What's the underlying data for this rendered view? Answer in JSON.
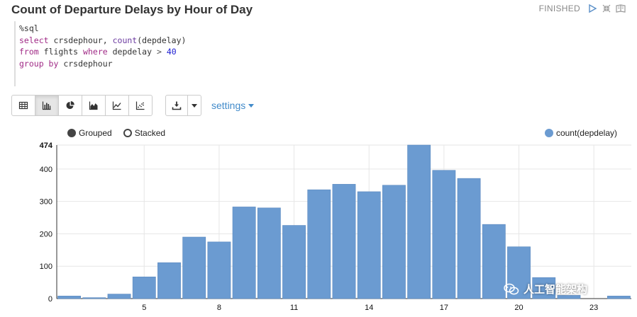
{
  "paragraph": {
    "title": "Count of Departure Delays by Hour of Day",
    "status": "FINISHED"
  },
  "icons": {
    "run": "play-icon",
    "collapse": "collapse-icon",
    "book": "book-icon"
  },
  "code": {
    "interpreter": "%sql",
    "line1_kw": "select",
    "line1_rest": "crsdephour,",
    "line1_fn": "count",
    "line1_arg": "(depdelay)",
    "line2_kw1": "from",
    "line2_tbl": "flights",
    "line2_kw2": "where",
    "line2_col": "depdelay",
    "line2_op": ">",
    "line2_num": "40",
    "line3_kw": "group by",
    "line3_col": "crsdephour"
  },
  "toolbar": {
    "views": [
      "table-icon",
      "bar-chart-icon",
      "pie-chart-icon",
      "area-chart-icon",
      "line-chart-icon",
      "scatter-chart-icon"
    ],
    "active_view": "bar-chart-icon",
    "settings_label": "settings"
  },
  "legend": {
    "grouped": "Grouped",
    "stacked": "Stacked",
    "series": "count(depdelay)",
    "series_color": "#6b9bd1"
  },
  "watermark": "人工智能架构",
  "chart_data": {
    "type": "bar",
    "xlabel": "",
    "ylabel": "",
    "x": [
      2,
      3,
      4,
      5,
      6,
      7,
      8,
      9,
      10,
      11,
      12,
      13,
      14,
      15,
      16,
      17,
      18,
      19,
      20,
      21,
      22,
      23,
      24
    ],
    "x_tick_labels": [
      "5",
      "8",
      "11",
      "14",
      "17",
      "20",
      "23"
    ],
    "x_tick_values": [
      5,
      8,
      11,
      14,
      17,
      20,
      23
    ],
    "y_tick_labels": [
      "0",
      "100",
      "200",
      "300",
      "400",
      "474"
    ],
    "ylim": [
      0,
      474
    ],
    "grid": true,
    "legend_position": "top-right",
    "series": [
      {
        "name": "count(depdelay)",
        "color": "#6b9bd1",
        "values": [
          8,
          3,
          14,
          67,
          111,
          190,
          175,
          283,
          280,
          226,
          336,
          353,
          330,
          350,
          474,
          396,
          371,
          229,
          160,
          65,
          10,
          0,
          8
        ]
      }
    ]
  }
}
